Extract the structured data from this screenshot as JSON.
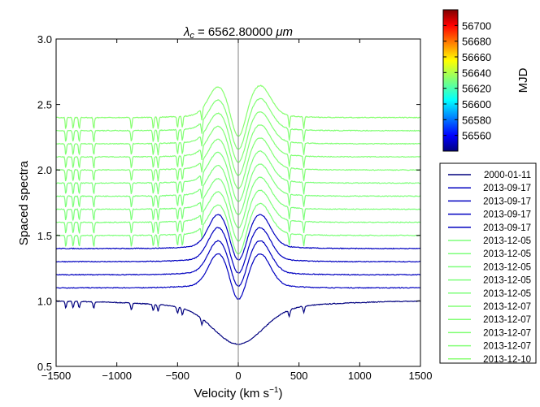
{
  "chart_data": {
    "type": "line",
    "title": "λc = 6562.80000 μm",
    "title_parts": {
      "symbol": "λ",
      "subscript": "c",
      "value": " = 6562.80000 ",
      "unit": "μm"
    },
    "xlabel": "Velocity (km s−1)",
    "xlabel_parts": {
      "main": "Velocity (km s",
      "sup": "−1",
      "tail": ")"
    },
    "ylabel": "Spaced spectra",
    "xlim": [
      -1500,
      1500
    ],
    "ylim": [
      0.5,
      3.0
    ],
    "xticks": [
      -1500,
      -1000,
      -500,
      0,
      500,
      1000,
      1500
    ],
    "xtick_labels": [
      "−1500",
      "−1000",
      "−500",
      "0",
      "500",
      "1000",
      "1500"
    ],
    "yticks": [
      0.5,
      1.0,
      1.5,
      2.0,
      2.5,
      3.0
    ],
    "ytick_labels": [
      "0.5",
      "1.0",
      "1.5",
      "2.0",
      "2.5",
      "3.0"
    ],
    "reference_line_x": 0,
    "legend_position": "outside-right",
    "series": [
      {
        "name": "2000-01-11",
        "mjd": 51554,
        "offset": 1.0,
        "profile": "absorption",
        "peak_b": 0.0,
        "peak_r": 0.0,
        "core": -0.28,
        "color": "#00007f"
      },
      {
        "name": "2013-09-17",
        "mjd": 56552,
        "offset": 1.1,
        "profile": "double-peak",
        "peak_b": 0.235,
        "peak_r": 0.235,
        "core": -0.17,
        "color": "#0000c0"
      },
      {
        "name": "2013-09-17",
        "mjd": 56552,
        "offset": 1.2,
        "profile": "double-peak",
        "peak_b": 0.235,
        "peak_r": 0.235,
        "core": -0.17,
        "color": "#0000c0"
      },
      {
        "name": "2013-09-17",
        "mjd": 56552,
        "offset": 1.3,
        "profile": "double-peak",
        "peak_b": 0.235,
        "peak_r": 0.235,
        "core": -0.17,
        "color": "#0000c0"
      },
      {
        "name": "2013-09-17",
        "mjd": 56552,
        "offset": 1.4,
        "profile": "double-peak",
        "peak_b": 0.235,
        "peak_r": 0.235,
        "core": -0.17,
        "color": "#0000c0"
      },
      {
        "name": "2013-12-05",
        "mjd": 56631,
        "offset": 1.5,
        "profile": "double-peak",
        "peak_b": 0.21,
        "peak_r": 0.22,
        "core": -0.22,
        "color": "#7dff7a"
      },
      {
        "name": "2013-12-05",
        "mjd": 56631,
        "offset": 1.6,
        "profile": "double-peak",
        "peak_b": 0.21,
        "peak_r": 0.22,
        "core": -0.22,
        "color": "#7dff7a"
      },
      {
        "name": "2013-12-05",
        "mjd": 56631,
        "offset": 1.7,
        "profile": "double-peak",
        "peak_b": 0.21,
        "peak_r": 0.22,
        "core": -0.22,
        "color": "#7dff7a"
      },
      {
        "name": "2013-12-05",
        "mjd": 56631,
        "offset": 1.8,
        "profile": "double-peak",
        "peak_b": 0.21,
        "peak_r": 0.22,
        "core": -0.22,
        "color": "#7dff7a"
      },
      {
        "name": "2013-12-05",
        "mjd": 56631,
        "offset": 1.9,
        "profile": "double-peak",
        "peak_b": 0.21,
        "peak_r": 0.22,
        "core": -0.22,
        "color": "#7dff7a"
      },
      {
        "name": "2013-12-07",
        "mjd": 56633,
        "offset": 2.0,
        "profile": "double-peak",
        "peak_b": 0.21,
        "peak_r": 0.22,
        "core": -0.22,
        "color": "#82ff75"
      },
      {
        "name": "2013-12-07",
        "mjd": 56633,
        "offset": 2.1,
        "profile": "double-peak",
        "peak_b": 0.21,
        "peak_r": 0.22,
        "core": -0.22,
        "color": "#82ff75"
      },
      {
        "name": "2013-12-07",
        "mjd": 56633,
        "offset": 2.2,
        "profile": "double-peak",
        "peak_b": 0.21,
        "peak_r": 0.22,
        "core": -0.22,
        "color": "#82ff75"
      },
      {
        "name": "2013-12-07",
        "mjd": 56633,
        "offset": 2.3,
        "profile": "double-peak",
        "peak_b": 0.21,
        "peak_r": 0.22,
        "core": -0.22,
        "color": "#82ff75"
      },
      {
        "name": "2013-12-10",
        "mjd": 56636,
        "offset": 2.4,
        "profile": "double-peak",
        "peak_b": 0.21,
        "peak_r": 0.22,
        "core": -0.22,
        "color": "#87ff70"
      }
    ],
    "colorbar": {
      "label": "MJD",
      "range": [
        56540,
        56720
      ],
      "ticks": [
        56560,
        56580,
        56600,
        56620,
        56640,
        56660,
        56680,
        56700
      ],
      "tick_labels": [
        "56560",
        "56580",
        "56600",
        "56620",
        "56640",
        "56660",
        "56680",
        "56700"
      ],
      "colormap": "jet"
    }
  }
}
